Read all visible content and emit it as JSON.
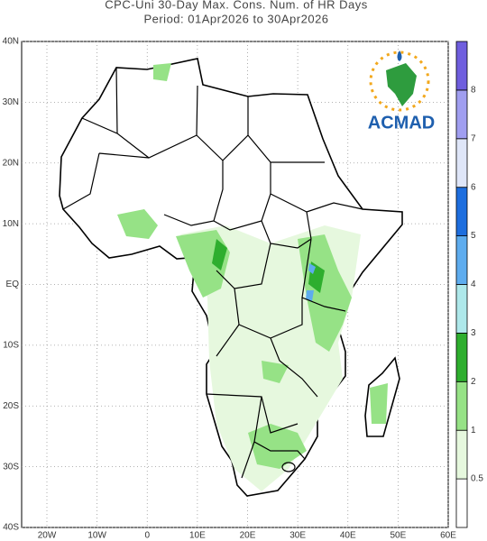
{
  "header": {
    "title": "CPC-Uni 30-Day Max. Cons. Num. of HR Days",
    "subtitle": "Period: 01Apr2026 to 30Apr2026"
  },
  "map": {
    "lat_labels": [
      "40N",
      "30N",
      "20N",
      "10N",
      "EQ",
      "10S",
      "20S",
      "30S",
      "40S"
    ],
    "lon_labels": [
      "20W",
      "10W",
      "0",
      "10E",
      "20E",
      "30E",
      "40E",
      "50E",
      "60E"
    ]
  },
  "legend": {
    "ticks": [
      0.5,
      1,
      2,
      3,
      4,
      5,
      6,
      7,
      8
    ],
    "colors": [
      "#ffffff",
      "#e6f8de",
      "#96e286",
      "#2eae2e",
      "#aee8ea",
      "#5eacee",
      "#1e6ede",
      "#dfe6f8",
      "#a09ef0",
      "#6f5ede"
    ]
  },
  "logo": {
    "text": "ACMAD"
  }
}
